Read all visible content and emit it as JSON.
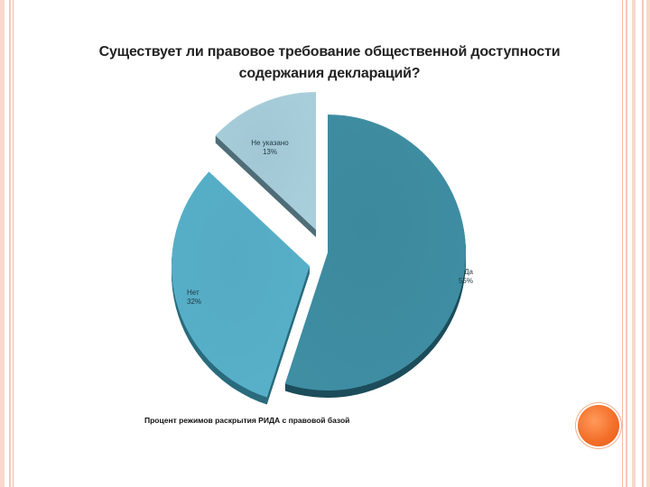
{
  "slide": {
    "title_line1": "Существует ли правовое требование общественной доступности",
    "title_line2": "содержания деклараций?",
    "caption": "Процент режимов раскрытия РИДА с правовой базой"
  },
  "chart_data": {
    "type": "pie",
    "title": "Существует ли правовое требование общественной доступности содержания деклараций?",
    "slices": [
      {
        "label": "Да",
        "value": 55,
        "value_label": "55%",
        "color": "#3f8ea3",
        "side_color": "#1d4d5b"
      },
      {
        "label": "Нет",
        "value": 32,
        "value_label": "32%",
        "color": "#58b0c9",
        "side_color": "#2a6b7d"
      },
      {
        "label": "Не указано",
        "value": 13,
        "value_label": "13%",
        "color": "#a9cfdc",
        "side_color": "#4f6d78"
      }
    ],
    "exploded": true,
    "style": "3d"
  },
  "colors": {
    "accent_orange": "#f4702a",
    "stripe_pink": "#f6c9b6"
  }
}
